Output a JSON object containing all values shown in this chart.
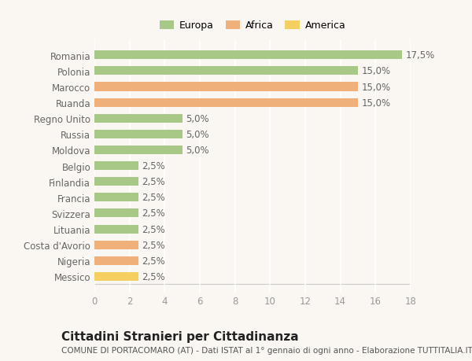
{
  "categories": [
    "Messico",
    "Nigeria",
    "Costa d'Avorio",
    "Lituania",
    "Svizzera",
    "Francia",
    "Finlandia",
    "Belgio",
    "Moldova",
    "Russia",
    "Regno Unito",
    "Ruanda",
    "Marocco",
    "Polonia",
    "Romania"
  ],
  "values": [
    2.5,
    2.5,
    2.5,
    2.5,
    2.5,
    2.5,
    2.5,
    2.5,
    5.0,
    5.0,
    5.0,
    15.0,
    15.0,
    15.0,
    17.5
  ],
  "colors": [
    "#f5d060",
    "#f0b07a",
    "#f0b07a",
    "#a8c888",
    "#a8c888",
    "#a8c888",
    "#a8c888",
    "#a8c888",
    "#a8c888",
    "#a8c888",
    "#a8c888",
    "#f0b07a",
    "#f0b07a",
    "#a8c888",
    "#a8c888"
  ],
  "labels": [
    "2,5%",
    "2,5%",
    "2,5%",
    "2,5%",
    "2,5%",
    "2,5%",
    "2,5%",
    "2,5%",
    "5,0%",
    "5,0%",
    "5,0%",
    "15,0%",
    "15,0%",
    "15,0%",
    "17,5%"
  ],
  "legend": [
    {
      "label": "Europa",
      "color": "#a8c888"
    },
    {
      "label": "Africa",
      "color": "#f0b07a"
    },
    {
      "label": "America",
      "color": "#f5d060"
    }
  ],
  "xlim": [
    0,
    18
  ],
  "xticks": [
    0,
    2,
    4,
    6,
    8,
    10,
    12,
    14,
    16,
    18
  ],
  "title": "Cittadini Stranieri per Cittadinanza",
  "subtitle": "COMUNE DI PORTACOMARO (AT) - Dati ISTAT al 1° gennaio di ogni anno - Elaborazione TUTTITALIA.IT",
  "background_color": "#faf7f2",
  "grid_color": "#ffffff",
  "bar_height": 0.55,
  "label_fontsize": 8.5,
  "tick_fontsize": 8.5,
  "title_fontsize": 11,
  "subtitle_fontsize": 7.5
}
